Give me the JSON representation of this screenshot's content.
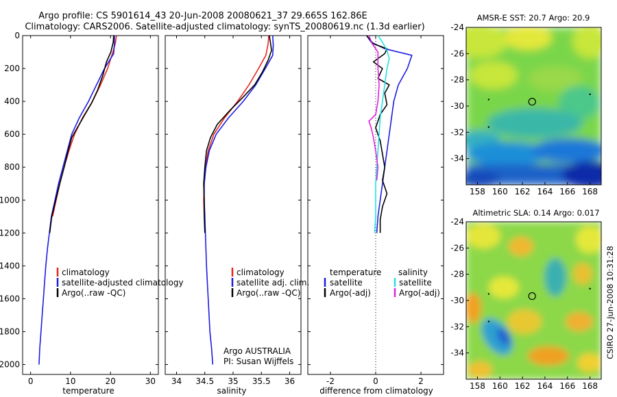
{
  "figure": {
    "title_line1": "Argo profile: CS 5901614_43 20-Jun-2008 20080621_37 29.665S 162.86E",
    "title_line2": "Climatology: CARS2006. Satellite-adjusted climatology: synTS_20080619.nc (1.3d earlier)",
    "credit": "CSIRO 27-Jun-2008 10:31:28",
    "argo_agency": "Argo AUSTRALIA",
    "pi": "PI: Susan Wijffels"
  },
  "colors": {
    "climatology": "#e8251c",
    "satellite": "#1b1bdf",
    "argo": "#000000",
    "salinity_satellite": "#22e0e0",
    "salinity_argo": "#e020e0"
  },
  "chart_data": [
    {
      "type": "line",
      "id": "temperature",
      "xlabel": "temperature",
      "xlim": [
        -2,
        32
      ],
      "ylim": [
        2060,
        0
      ],
      "yticks": [
        0,
        200,
        400,
        600,
        800,
        1000,
        1200,
        1400,
        1600,
        1800,
        2000
      ],
      "xticks": [
        0,
        10,
        20,
        30
      ],
      "legend": [
        "climatology",
        "satellite-adjusted climatology",
        "Argo(..raw -QC)"
      ],
      "series": [
        {
          "name": "climatology",
          "color": "#e8251c",
          "points": [
            [
              21.5,
              0
            ],
            [
              21.2,
              50
            ],
            [
              20.6,
              100
            ],
            [
              19.3,
              200
            ],
            [
              17.5,
              300
            ],
            [
              15.5,
              400
            ],
            [
              13.0,
              500
            ],
            [
              11.0,
              600
            ],
            [
              9.6,
              700
            ],
            [
              8.4,
              800
            ],
            [
              7.3,
              900
            ],
            [
              6.4,
              1000
            ],
            [
              5.5,
              1100
            ]
          ]
        },
        {
          "name": "satellite-adjusted climatology",
          "color": "#1b1bdf",
          "points": [
            [
              21.0,
              0
            ],
            [
              21.0,
              50
            ],
            [
              20.8,
              110
            ],
            [
              18.5,
              200
            ],
            [
              16.5,
              300
            ],
            [
              14.5,
              400
            ],
            [
              12.2,
              500
            ],
            [
              10.3,
              600
            ],
            [
              9.2,
              700
            ],
            [
              8.1,
              800
            ],
            [
              7.0,
              900
            ],
            [
              6.1,
              1000
            ],
            [
              5.2,
              1100
            ],
            [
              4.7,
              1200
            ],
            [
              4.2,
              1300
            ],
            [
              3.8,
              1400
            ],
            [
              3.5,
              1500
            ],
            [
              3.2,
              1600
            ],
            [
              2.9,
              1700
            ],
            [
              2.6,
              1800
            ],
            [
              2.3,
              1900
            ],
            [
              2.1,
              2000
            ]
          ]
        },
        {
          "name": "Argo(..raw -QC)",
          "color": "#000000",
          "points": [
            [
              20.8,
              0
            ],
            [
              20.7,
              40
            ],
            [
              20.1,
              100
            ],
            [
              19.0,
              160
            ],
            [
              18.1,
              240
            ],
            [
              16.8,
              330
            ],
            [
              15.3,
              410
            ],
            [
              13.6,
              480
            ],
            [
              11.7,
              560
            ],
            [
              10.3,
              620
            ],
            [
              9.4,
              700
            ],
            [
              8.4,
              800
            ],
            [
              7.3,
              900
            ],
            [
              6.3,
              1000
            ],
            [
              5.3,
              1100
            ],
            [
              4.8,
              1200
            ]
          ]
        }
      ]
    },
    {
      "type": "line",
      "id": "salinity",
      "xlabel": "salinity",
      "xlim": [
        33.8,
        36.2
      ],
      "ylim": [
        2060,
        0
      ],
      "xticks": [
        34,
        34.5,
        35,
        35.5,
        36
      ],
      "legend": [
        "climatology",
        "satellite adj. clim.",
        "Argo(..raw -QC)"
      ],
      "series": [
        {
          "name": "climatology",
          "color": "#e8251c",
          "points": [
            [
              35.63,
              0
            ],
            [
              35.62,
              50
            ],
            [
              35.58,
              120
            ],
            [
              35.45,
              200
            ],
            [
              35.28,
              300
            ],
            [
              35.08,
              400
            ],
            [
              34.85,
              500
            ],
            [
              34.66,
              600
            ],
            [
              34.56,
              700
            ],
            [
              34.51,
              800
            ],
            [
              34.49,
              900
            ],
            [
              34.48,
              1000
            ],
            [
              34.49,
              1100
            ]
          ]
        },
        {
          "name": "satellite adj. clim.",
          "color": "#1b1bdf",
          "points": [
            [
              35.7,
              0
            ],
            [
              35.71,
              60
            ],
            [
              35.7,
              120
            ],
            [
              35.57,
              200
            ],
            [
              35.4,
              300
            ],
            [
              35.18,
              400
            ],
            [
              34.92,
              500
            ],
            [
              34.7,
              600
            ],
            [
              34.58,
              700
            ],
            [
              34.52,
              800
            ],
            [
              34.49,
              900
            ],
            [
              34.49,
              1000
            ],
            [
              34.5,
              1100
            ],
            [
              34.51,
              1200
            ],
            [
              34.53,
              1400
            ],
            [
              34.56,
              1600
            ],
            [
              34.59,
              1800
            ],
            [
              34.62,
              1900
            ],
            [
              34.64,
              2000
            ]
          ]
        },
        {
          "name": "Argo(..raw -QC)",
          "color": "#000000",
          "points": [
            [
              35.64,
              0
            ],
            [
              35.66,
              40
            ],
            [
              35.68,
              90
            ],
            [
              35.62,
              150
            ],
            [
              35.52,
              220
            ],
            [
              35.38,
              300
            ],
            [
              35.16,
              380
            ],
            [
              34.93,
              460
            ],
            [
              34.72,
              540
            ],
            [
              34.6,
              620
            ],
            [
              34.53,
              700
            ],
            [
              34.5,
              800
            ],
            [
              34.48,
              900
            ],
            [
              34.49,
              1000
            ],
            [
              34.49,
              1100
            ],
            [
              34.5,
              1200
            ]
          ]
        }
      ]
    },
    {
      "type": "line",
      "id": "difference",
      "xlabel": "difference from climatology",
      "xlim": [
        -3,
        3
      ],
      "ylim": [
        2060,
        0
      ],
      "xticks": [
        -2,
        0,
        2
      ],
      "legend_groups": [
        {
          "header": "temperature",
          "items": [
            "satellite",
            "Argo(-adj)"
          ]
        },
        {
          "header": "salinity",
          "items": [
            "satellite",
            "Argo(-adj)"
          ]
        }
      ],
      "series": [
        {
          "name": "temperature satellite",
          "color": "#1b1bdf",
          "points": [
            [
              -0.4,
              0
            ],
            [
              -0.2,
              40
            ],
            [
              0.4,
              80
            ],
            [
              1.6,
              120
            ],
            [
              1.4,
              200
            ],
            [
              1.0,
              300
            ],
            [
              0.8,
              400
            ],
            [
              0.7,
              500
            ],
            [
              0.6,
              600
            ],
            [
              0.5,
              700
            ],
            [
              0.4,
              800
            ],
            [
              0.3,
              900
            ],
            [
              0.2,
              1000
            ],
            [
              0.1,
              1100
            ],
            [
              0.05,
              1200
            ]
          ]
        },
        {
          "name": "temperature Argo(-adj)",
          "color": "#000000",
          "points": [
            [
              -0.4,
              0
            ],
            [
              -0.1,
              50
            ],
            [
              0.5,
              80
            ],
            [
              0.4,
              110
            ],
            [
              -0.1,
              160
            ],
            [
              0.3,
              200
            ],
            [
              0.1,
              260
            ],
            [
              0.6,
              300
            ],
            [
              0.4,
              350
            ],
            [
              0.5,
              420
            ],
            [
              0.2,
              480
            ],
            [
              0.0,
              560
            ],
            [
              0.2,
              640
            ],
            [
              0.3,
              720
            ],
            [
              0.4,
              800
            ],
            [
              0.3,
              880
            ],
            [
              0.5,
              960
            ],
            [
              0.3,
              1040
            ],
            [
              0.2,
              1120
            ],
            [
              0.2,
              1200
            ]
          ]
        },
        {
          "name": "salinity satellite",
          "color": "#22e0e0",
          "points": [
            [
              0.1,
              0
            ],
            [
              0.3,
              40
            ],
            [
              0.5,
              90
            ],
            [
              0.6,
              140
            ],
            [
              0.5,
              200
            ],
            [
              0.4,
              300
            ],
            [
              0.3,
              400
            ],
            [
              0.2,
              500
            ],
            [
              0.15,
              600
            ],
            [
              0.1,
              700
            ],
            [
              0.05,
              800
            ],
            [
              0.0,
              900
            ],
            [
              0.0,
              1000
            ],
            [
              0.0,
              1100
            ],
            [
              -0.05,
              1200
            ]
          ]
        },
        {
          "name": "salinity Argo(-adj)",
          "color": "#e020e0",
          "points": [
            [
              -0.3,
              0
            ],
            [
              -0.15,
              50
            ],
            [
              0.1,
              100
            ],
            [
              0.1,
              200
            ],
            [
              0.15,
              300
            ],
            [
              0.1,
              400
            ],
            [
              0.0,
              480
            ],
            [
              -0.3,
              520
            ],
            [
              -0.2,
              560
            ],
            [
              -0.1,
              620
            ],
            [
              0.0,
              700
            ],
            [
              0.1,
              800
            ],
            [
              0.05,
              880
            ]
          ]
        }
      ]
    },
    {
      "type": "heatmap",
      "id": "sst-map",
      "title": "AMSR-E SST: 20.7 Argo: 20.9",
      "xlim": [
        157,
        169
      ],
      "ylim": [
        -36,
        -24
      ],
      "xticks": [
        158,
        160,
        162,
        164,
        166,
        168
      ],
      "yticks": [
        -24,
        -26,
        -28,
        -30,
        -32,
        -34
      ],
      "marker": [
        162.86,
        -29.665
      ]
    },
    {
      "type": "heatmap",
      "id": "sla-map",
      "title": "Altimetric SLA: 0.14 Argo: 0.017",
      "xlim": [
        157,
        169
      ],
      "ylim": [
        -36,
        -24
      ],
      "xticks": [
        158,
        160,
        162,
        164,
        166,
        168
      ],
      "yticks": [
        -24,
        -26,
        -28,
        -30,
        -32,
        -34
      ],
      "marker": [
        162.86,
        -29.665
      ]
    }
  ]
}
